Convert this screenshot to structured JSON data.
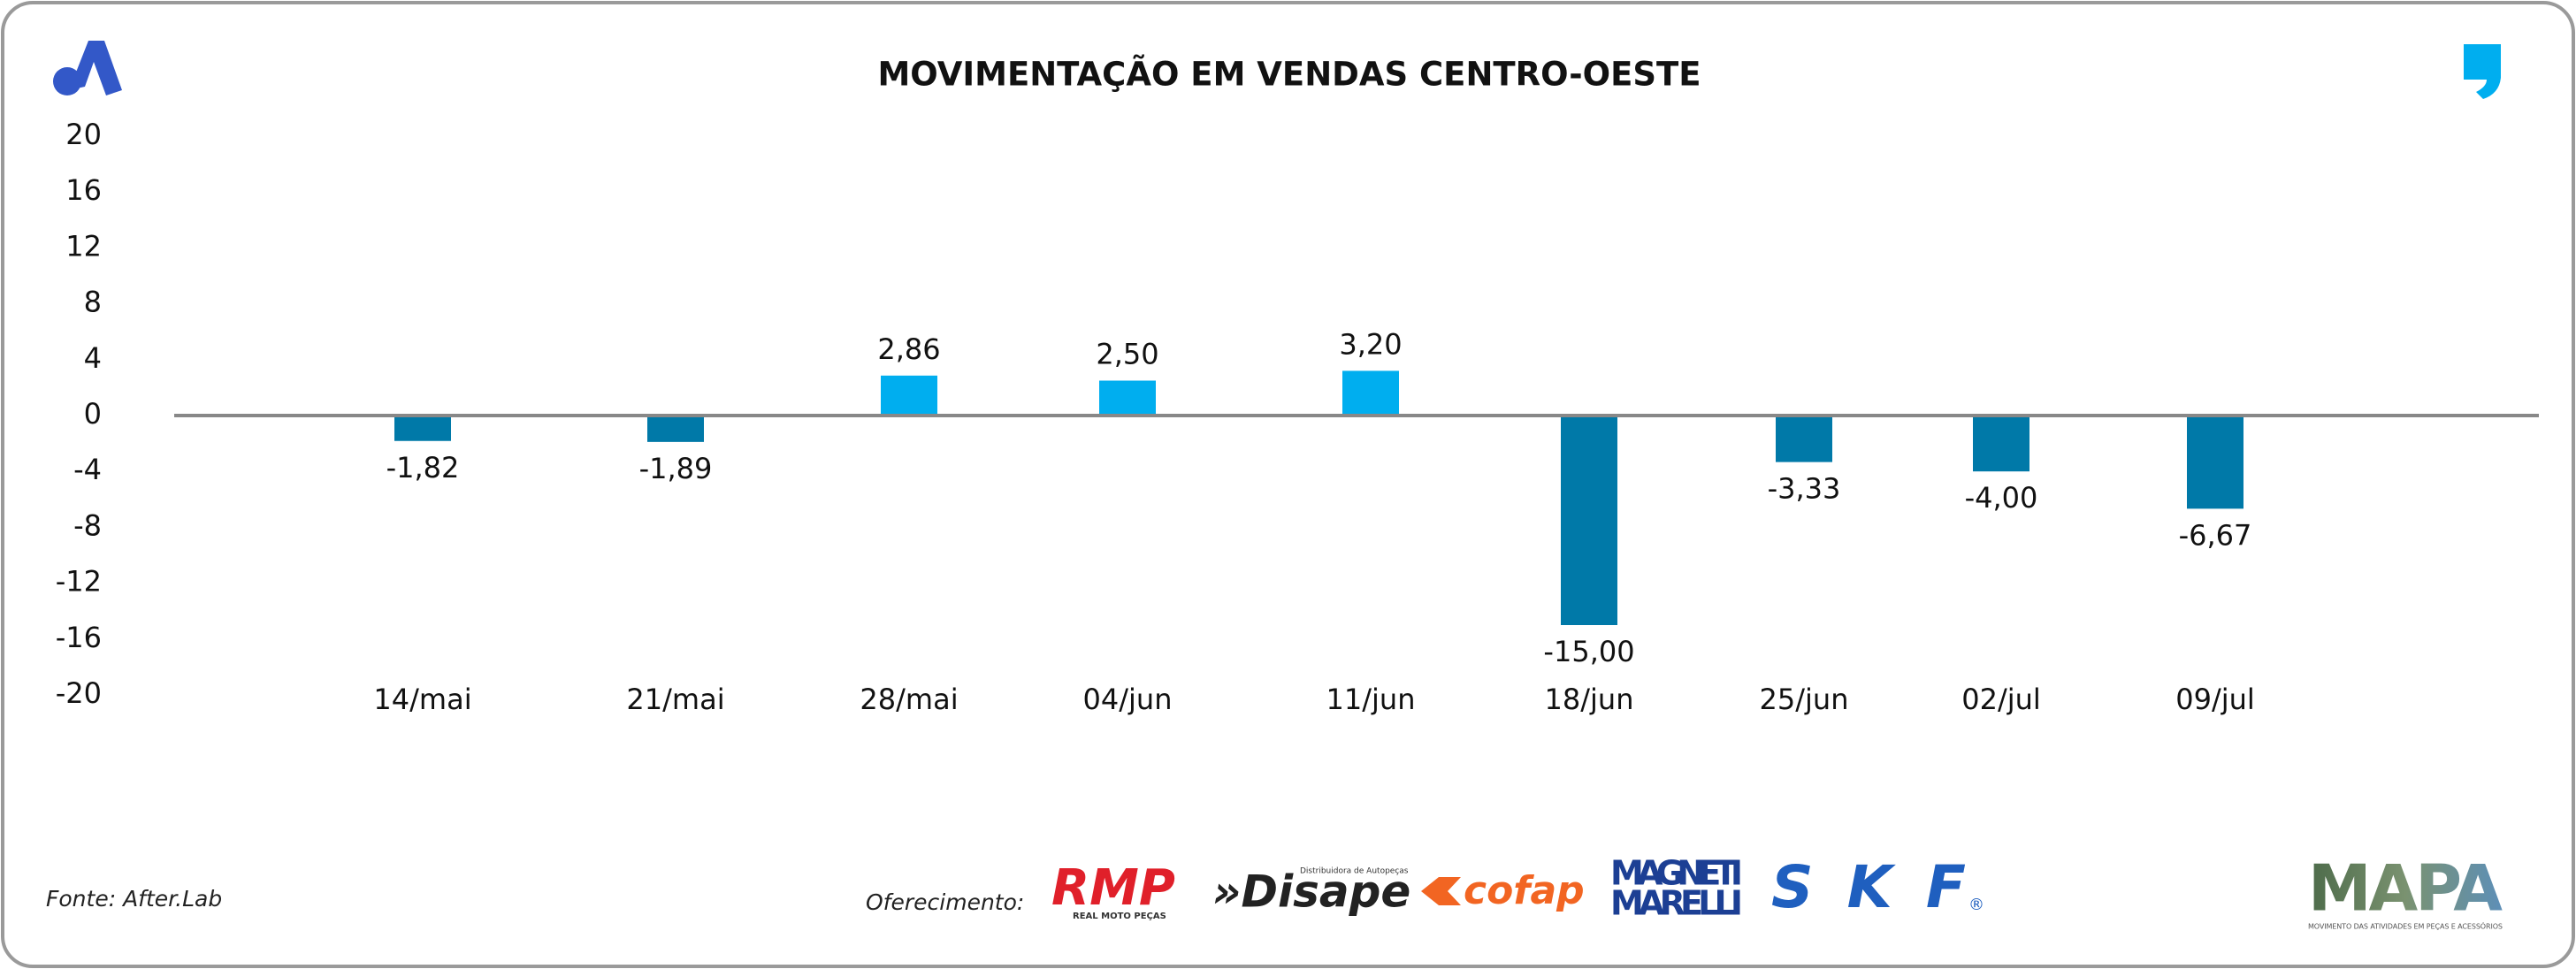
{
  "chart_data": {
    "type": "bar",
    "title": "MOVIMENTAÇÃO EM VENDAS CENTRO-OESTE",
    "categories": [
      "14/mai",
      "21/mai",
      "28/mai",
      "04/jun",
      "11/jun",
      "18/jun",
      "25/jun",
      "02/jul",
      "09/jul"
    ],
    "values": [
      -1.82,
      -1.89,
      2.86,
      2.5,
      3.2,
      -15,
      -3.33,
      -4,
      -6.67
    ],
    "value_labels": [
      "-1,82",
      "-1,89",
      "2,86",
      "2,50",
      "3,20",
      "-15,00",
      "-3,33",
      "-4,00",
      "-6,67"
    ],
    "colors": [
      "#0079a8",
      "#0079a8",
      "#00aeef",
      "#00aeef",
      "#00aeef",
      "#0079a8",
      "#0079a8",
      "#0079a8",
      "#0079a8"
    ],
    "ylim": [
      -20,
      20
    ],
    "yticks": [
      20,
      16,
      12,
      8,
      4,
      0,
      -4,
      -8,
      -12,
      -16,
      -20
    ],
    "grid": false
  },
  "footer": {
    "source": "Fonte: After.Lab",
    "sponsor_label": "Oferecimento:",
    "sponsors": [
      "RMP",
      "REAL MOTO PEÇAS",
      "»Disape",
      "Distribuidora de Autopeças",
      "cofap",
      "MAGNETI",
      "MARELLI",
      "SKF",
      "®",
      "MAPA",
      "MOVIMENTO DAS ATIVIDADES EM PEÇAS E ACESSÓRIOS"
    ]
  }
}
